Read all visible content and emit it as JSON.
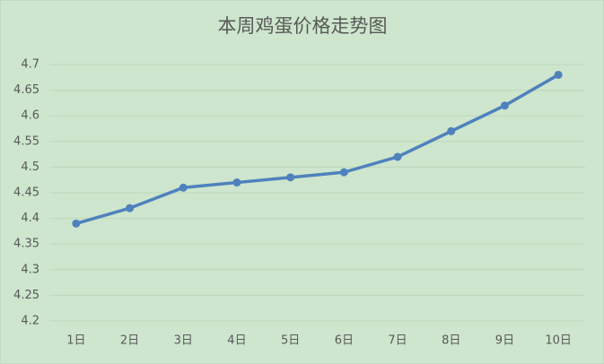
{
  "chart_data": {
    "type": "line",
    "title": "本周鸡蛋价格走势图",
    "categories": [
      "1日",
      "2日",
      "3日",
      "4日",
      "5日",
      "6日",
      "7日",
      "8日",
      "9日",
      "10日"
    ],
    "series": [
      {
        "color": "#4f81bd",
        "values": [
          4.39,
          4.42,
          4.46,
          4.47,
          4.48,
          4.49,
          4.52,
          4.57,
          4.62,
          4.68
        ]
      }
    ],
    "ylim": [
      4.2,
      4.7
    ],
    "yticks": [
      4.2,
      4.25,
      4.3,
      4.35,
      4.4,
      4.45,
      4.5,
      4.55,
      4.6,
      4.65,
      4.7
    ],
    "grid": true
  }
}
